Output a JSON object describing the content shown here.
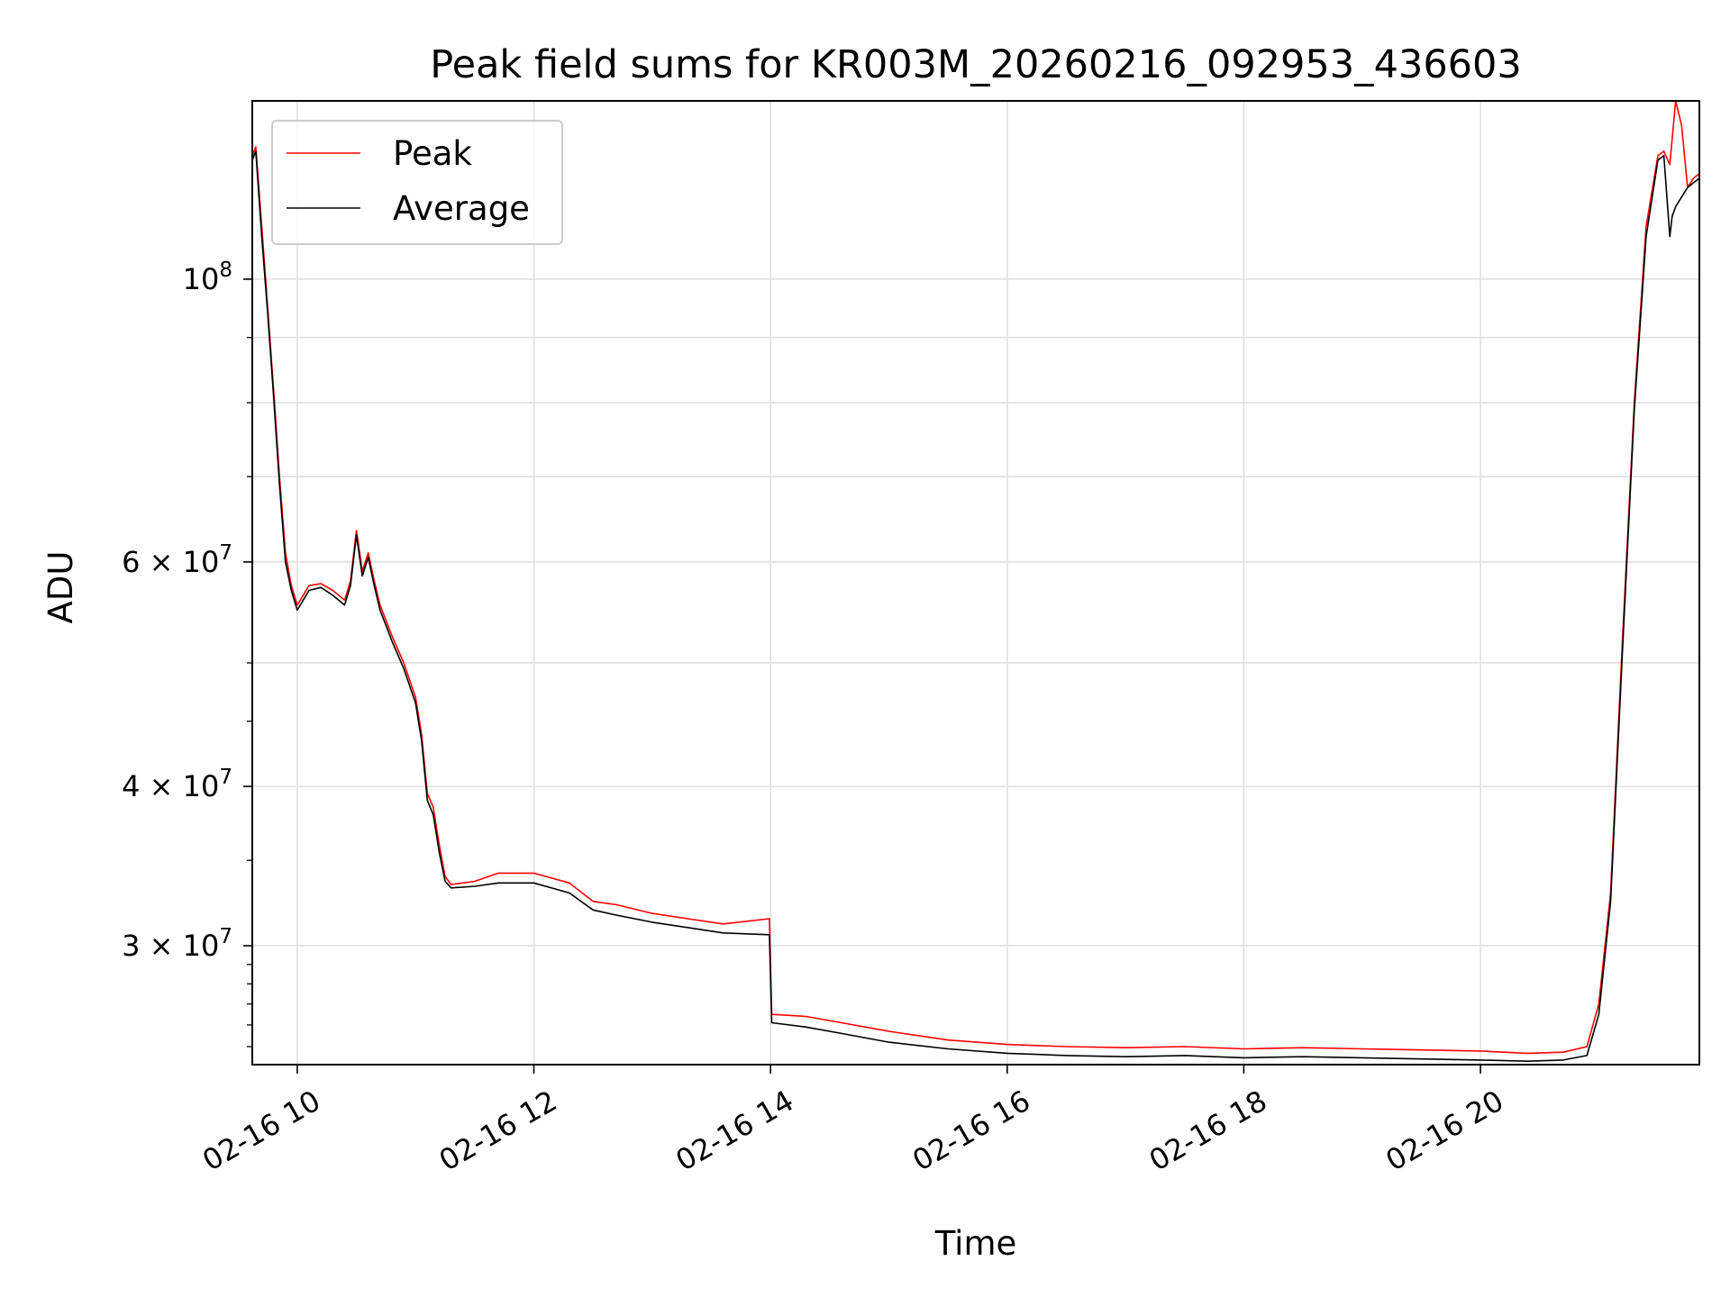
{
  "chart_data": {
    "type": "line",
    "title": "Peak field sums for KR003M_20260216_092953_436603",
    "xlabel": "Time",
    "ylabel": "ADU",
    "yscale": "log",
    "xlim": [
      9.62,
      21.85
    ],
    "ylim": [
      24200000,
      138000000
    ],
    "x_ticks": [
      {
        "value": 10,
        "label": "02-16 10"
      },
      {
        "value": 12,
        "label": "02-16 12"
      },
      {
        "value": 14,
        "label": "02-16 14"
      },
      {
        "value": 16,
        "label": "02-16 16"
      },
      {
        "value": 18,
        "label": "02-16 18"
      },
      {
        "value": 20,
        "label": "02-16 20"
      }
    ],
    "y_major_ticks": [
      {
        "value": 30000000,
        "mant": "3",
        "exp": "7"
      },
      {
        "value": 40000000,
        "mant": "4",
        "exp": "7"
      },
      {
        "value": 60000000,
        "mant": "6",
        "exp": "7"
      },
      {
        "value": 100000000,
        "mant": "",
        "exp": "8"
      }
    ],
    "y_minor_gridlines": [
      50000000,
      70000000,
      80000000,
      90000000
    ],
    "grid": true,
    "legend_position": "top-left",
    "colors": {
      "peak": "#ff0000",
      "average": "#000000",
      "grid": "#e0e0e0"
    },
    "series": [
      {
        "name": "Peak",
        "color": "#ff0000",
        "x": [
          9.62,
          9.65,
          9.7,
          9.75,
          9.8,
          9.85,
          9.9,
          9.95,
          10.0,
          10.05,
          10.1,
          10.2,
          10.3,
          10.4,
          10.45,
          10.5,
          10.55,
          10.6,
          10.65,
          10.7,
          10.75,
          10.8,
          10.9,
          11.0,
          11.05,
          11.1,
          11.15,
          11.2,
          11.25,
          11.3,
          11.5,
          11.7,
          12.0,
          12.3,
          12.5,
          12.7,
          13.0,
          13.3,
          13.6,
          13.99,
          14.01,
          14.3,
          14.6,
          15.0,
          15.5,
          16.0,
          16.5,
          17.0,
          17.5,
          18.0,
          18.5,
          19.0,
          19.5,
          20.0,
          20.4,
          20.7,
          20.9,
          21.0,
          21.1,
          21.2,
          21.3,
          21.4,
          21.5,
          21.55,
          21.6,
          21.65,
          21.7,
          21.75,
          21.8,
          21.85
        ],
        "y": [
          125000000,
          127000000,
          110000000,
          95000000,
          82000000,
          70000000,
          61000000,
          57500000,
          55500000,
          56500000,
          57500000,
          57700000,
          57000000,
          56000000,
          58000000,
          63500000,
          59000000,
          61000000,
          58000000,
          55500000,
          54000000,
          52500000,
          50000000,
          47000000,
          44000000,
          39500000,
          38500000,
          36000000,
          34000000,
          33500000,
          33700000,
          34200000,
          34200000,
          33600000,
          32500000,
          32300000,
          31800000,
          31500000,
          31200000,
          31500000,
          26500000,
          26400000,
          26100000,
          25700000,
          25300000,
          25100000,
          25000000,
          24950000,
          25000000,
          24900000,
          24950000,
          24900000,
          24850000,
          24800000,
          24700000,
          24750000,
          25000000,
          27000000,
          33000000,
          52000000,
          80000000,
          110000000,
          125000000,
          126000000,
          123000000,
          138000000,
          132000000,
          118000000,
          120000000,
          121000000
        ]
      },
      {
        "name": "Average",
        "color": "#000000",
        "x": [
          9.62,
          9.65,
          9.7,
          9.75,
          9.8,
          9.85,
          9.9,
          9.95,
          10.0,
          10.05,
          10.1,
          10.2,
          10.3,
          10.4,
          10.45,
          10.5,
          10.55,
          10.6,
          10.65,
          10.7,
          10.75,
          10.8,
          10.9,
          11.0,
          11.05,
          11.1,
          11.15,
          11.2,
          11.25,
          11.3,
          11.5,
          11.7,
          12.0,
          12.3,
          12.5,
          12.7,
          13.0,
          13.3,
          13.6,
          13.99,
          14.01,
          14.3,
          14.6,
          15.0,
          15.5,
          16.0,
          16.5,
          17.0,
          17.5,
          18.0,
          18.5,
          19.0,
          19.5,
          20.0,
          20.4,
          20.7,
          20.9,
          21.0,
          21.1,
          21.2,
          21.3,
          21.4,
          21.5,
          21.55,
          21.6,
          21.62,
          21.65,
          21.7,
          21.75,
          21.8,
          21.85
        ],
        "y": [
          124000000,
          126000000,
          108000000,
          94000000,
          81000000,
          69000000,
          60000000,
          57000000,
          55000000,
          56000000,
          57000000,
          57300000,
          56500000,
          55500000,
          57500000,
          63000000,
          58500000,
          60500000,
          57500000,
          55000000,
          53500000,
          52000000,
          49500000,
          46500000,
          43500000,
          39000000,
          38000000,
          35500000,
          33700000,
          33300000,
          33400000,
          33600000,
          33600000,
          33000000,
          32000000,
          31700000,
          31300000,
          31000000,
          30700000,
          30600000,
          26100000,
          25900000,
          25600000,
          25200000,
          24900000,
          24700000,
          24600000,
          24550000,
          24600000,
          24500000,
          24550000,
          24500000,
          24450000,
          24400000,
          24350000,
          24400000,
          24600000,
          26500000,
          32500000,
          51000000,
          79000000,
          108000000,
          124000000,
          125000000,
          108000000,
          112000000,
          114000000,
          116000000,
          118000000,
          119000000,
          120000000
        ]
      }
    ]
  }
}
